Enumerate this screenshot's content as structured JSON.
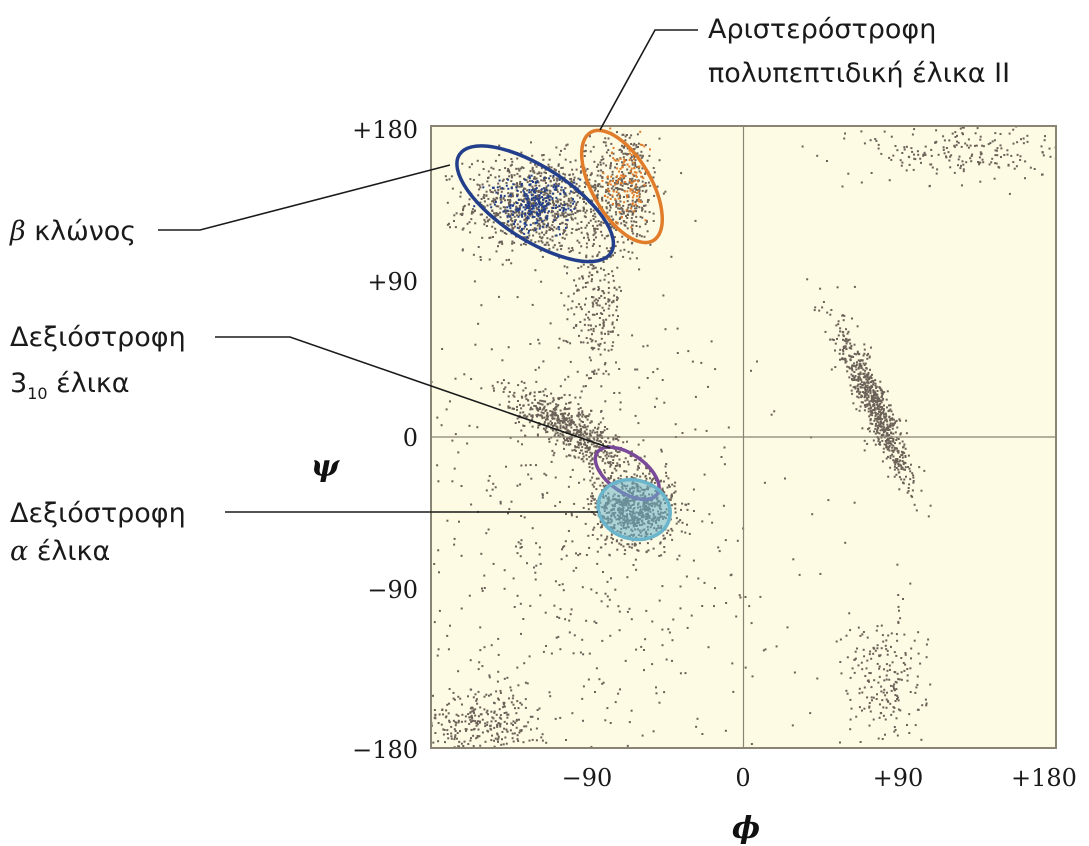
{
  "chart_data": {
    "type": "scatter",
    "title": "",
    "xlabel": "ϕ",
    "ylabel": "ψ",
    "xlim": [
      -180,
      180
    ],
    "ylim": [
      -180,
      180
    ],
    "x_ticks": [
      "−90",
      "0",
      "+90",
      "+180"
    ],
    "y_ticks": [
      "+180",
      "+90",
      "0",
      "−90",
      "−180"
    ],
    "grid": "zero-lines",
    "colors": {
      "background": "#fdfbe3",
      "points": "#6b6158",
      "frame": "#8a8475",
      "beta": "#233f8c",
      "ppii": "#e07c2a",
      "helix310": "#7a4a9a",
      "alpha": "#6ab4cc",
      "leader": "#1a1a1a"
    },
    "clusters": [
      {
        "name": "beta",
        "cx": -120,
        "cy": 135,
        "sx": 20,
        "sy": 14,
        "n": 900
      },
      {
        "name": "ppii",
        "cx": -68,
        "cy": 145,
        "sx": 10,
        "sy": 18,
        "n": 400
      },
      {
        "name": "alpha",
        "cx": -63,
        "cy": -42,
        "sx": 12,
        "sy": 10,
        "n": 700
      },
      {
        "name": "bridge",
        "cx": -100,
        "cy": 5,
        "sx": 18,
        "sy": 14,
        "n": 600
      },
      {
        "name": "beta-tail",
        "cx": -85,
        "cy": 80,
        "sx": 8,
        "sy": 25,
        "n": 260
      },
      {
        "name": "left-handed",
        "cx": 75,
        "cy": 20,
        "sx": 10,
        "sy": 22,
        "n": 700
      },
      {
        "name": "bottom-left",
        "cx": -150,
        "cy": -165,
        "sx": 18,
        "sy": 10,
        "n": 300
      },
      {
        "name": "bottom-right",
        "cx": 80,
        "cy": -140,
        "sx": 12,
        "sy": 20,
        "n": 220
      },
      {
        "name": "top-right",
        "cx": 130,
        "cy": 165,
        "sx": 30,
        "sy": 10,
        "n": 220
      },
      {
        "name": "scatter",
        "cx": -100,
        "cy": -60,
        "sx": 60,
        "sy": 80,
        "n": 600
      }
    ],
    "regions": [
      {
        "label": "β κλώνος",
        "phi": -120,
        "psi": 135,
        "rx_deg": 52,
        "ry_deg": 21,
        "angle_deg": 33,
        "color": "beta"
      },
      {
        "label": "Αριστερόστροφη πολυπεπτιδική έλικα ΙΙ",
        "phi": -70,
        "psi": 145,
        "rx_deg": 36,
        "ry_deg": 17,
        "angle_deg": 60,
        "color": "ppii"
      },
      {
        "label": "Δεξιόστροφη 3₁₀ έλικα",
        "phi": -67,
        "psi": -21,
        "rx_deg": 21,
        "ry_deg": 11,
        "angle_deg": 35,
        "color": "helix310"
      },
      {
        "label": "Δεξιόστροφη α έλικα",
        "phi": -63,
        "psi": -42,
        "rx_deg": 21,
        "ry_deg": 17,
        "angle_deg": 15,
        "color": "alpha"
      }
    ]
  },
  "callouts": {
    "beta_strand": {
      "sym": "β",
      "text": " κλώνος"
    },
    "ppii": {
      "line1": "Αριστερόστροφη",
      "line2": "πολυπεπτιδική έλικα ΙΙ"
    },
    "helix_310": {
      "line1": "Δεξιόστροφη",
      "num": "3",
      "sub": "10",
      "rest": " έλικα"
    },
    "alpha_helix": {
      "line1": "Δεξιόστροφη",
      "sym": "α",
      "rest": " έλικα"
    }
  }
}
